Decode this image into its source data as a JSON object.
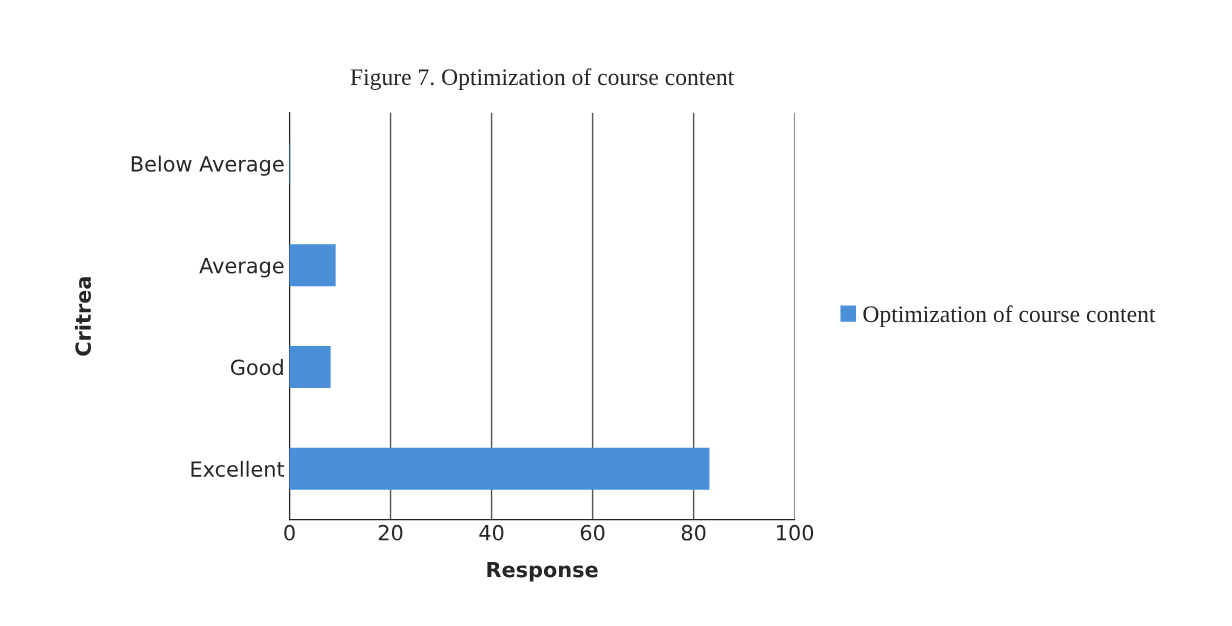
{
  "chart_data": {
    "type": "bar",
    "orientation": "horizontal",
    "title": "Figure 7. Optimization of course content",
    "xlabel": "Response",
    "ylabel": "Critrea",
    "categories": [
      "Below Average",
      "Average",
      "Good",
      "Excellent"
    ],
    "series": [
      {
        "name": "Optimization of course content",
        "color": "#4a8fd8",
        "values": [
          0,
          9,
          8,
          83
        ]
      }
    ],
    "xlim": [
      0,
      100
    ],
    "xticks": [
      0,
      20,
      40,
      60,
      80,
      100
    ],
    "grid": "x",
    "legend": "right"
  }
}
